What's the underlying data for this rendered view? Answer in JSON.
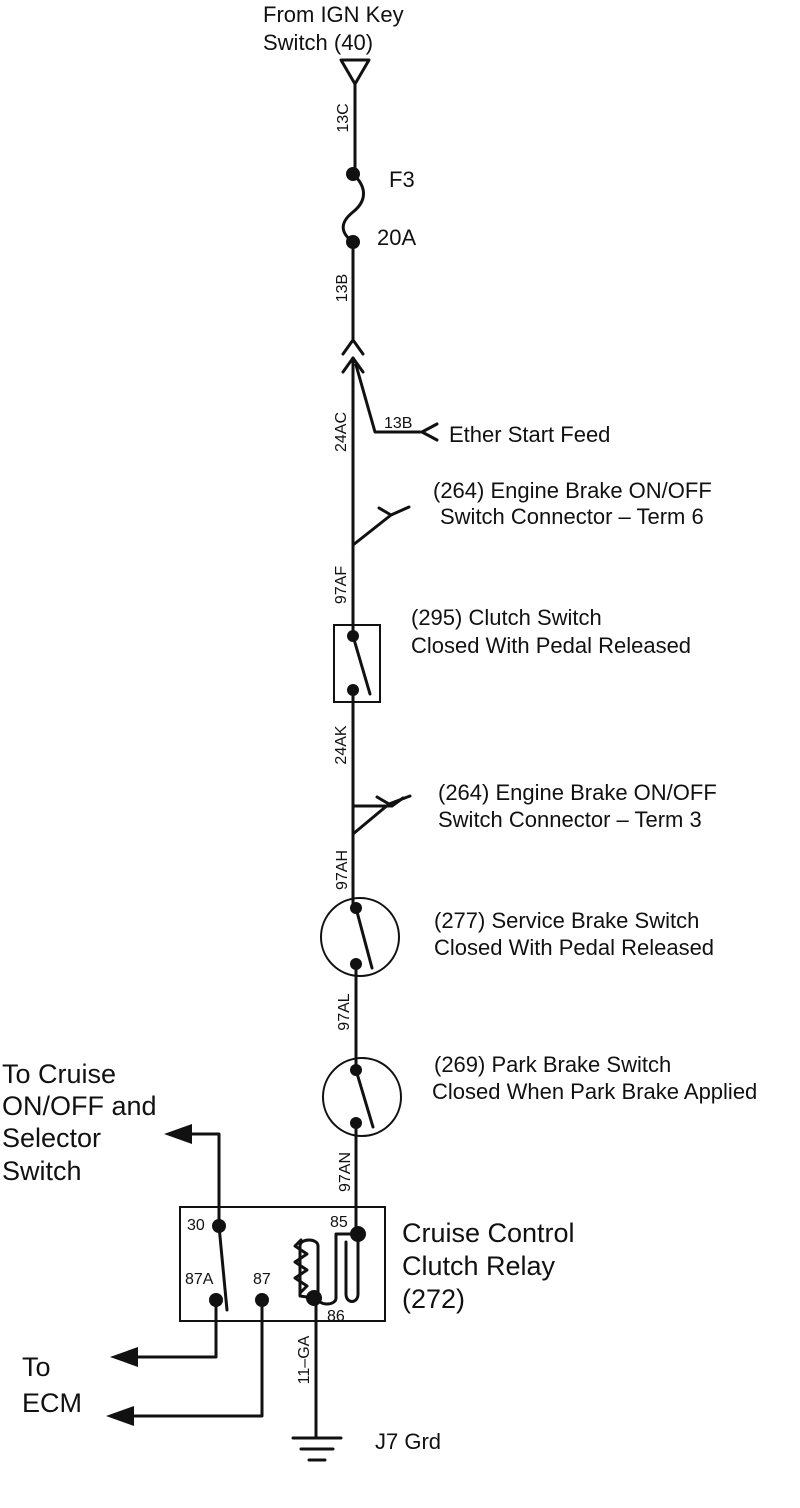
{
  "source": {
    "line1": "From IGN Key",
    "line2": "Switch (40)"
  },
  "wires": {
    "w13c": "13C",
    "w13b_upper": "13B",
    "w24ac": "24AC",
    "w13b_branch": "13B",
    "w97af": "97AF",
    "w24ak": "24AK",
    "w97ah": "97AH",
    "w97al": "97AL",
    "w97an": "97AN",
    "w11ga": "11–GA"
  },
  "fuse": {
    "name": "F3",
    "rating": "20A"
  },
  "ether": {
    "label": "Ether Start Feed"
  },
  "conn6": {
    "line1": "(264) Engine Brake ON/OFF",
    "line2": "Switch Connector  –  Term 6"
  },
  "clutch": {
    "line1": "(295) Clutch Switch",
    "line2": "Closed With Pedal Released"
  },
  "conn3": {
    "line1": "(264) Engine Brake ON/OFF",
    "line2": "Switch Connector  –  Term 3"
  },
  "service": {
    "line1": "(277) Service Brake Switch",
    "line2": "Closed With Pedal Released"
  },
  "park": {
    "line1": "(269) Park Brake Switch",
    "line2": "Closed When Park Brake Applied"
  },
  "cruise_sw": {
    "line1": "To Cruise",
    "line2": "ON/OFF and",
    "line3": "Selector",
    "line4": "Switch"
  },
  "relay": {
    "line1": "Cruise Control",
    "line2": "Clutch Relay",
    "line3": "(272)",
    "t30": "30",
    "t85": "85",
    "t87a": "87A",
    "t87": "87",
    "t86": "86"
  },
  "ecm": {
    "line1": "To",
    "line2": "ECM"
  },
  "ground": {
    "label": "J7 Grd"
  }
}
